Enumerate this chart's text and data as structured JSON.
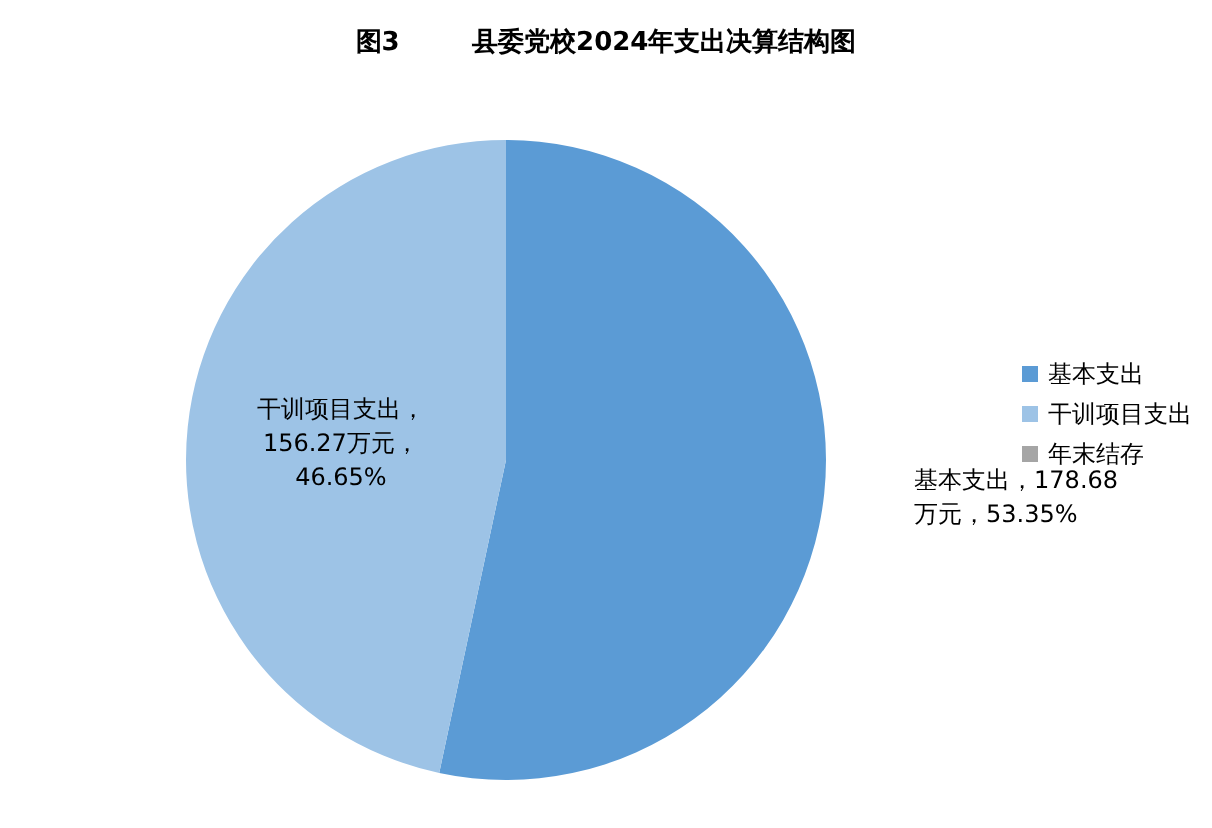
{
  "chart_data": {
    "type": "pie",
    "title": "图3        县委党校2024年支出决算结构图",
    "categories": [
      "基本支出",
      "干训项目支出",
      "年末结存"
    ],
    "values": [
      178.68,
      156.27,
      0
    ],
    "colors": [
      "#5b9bd5",
      "#9dc3e6",
      "#a5a5a5"
    ],
    "value_labels": [
      "基本支出，178.68\n万元，53.35%",
      "干训项目支出，\n156.27万元，\n46.65%",
      null
    ],
    "legend": "right"
  }
}
